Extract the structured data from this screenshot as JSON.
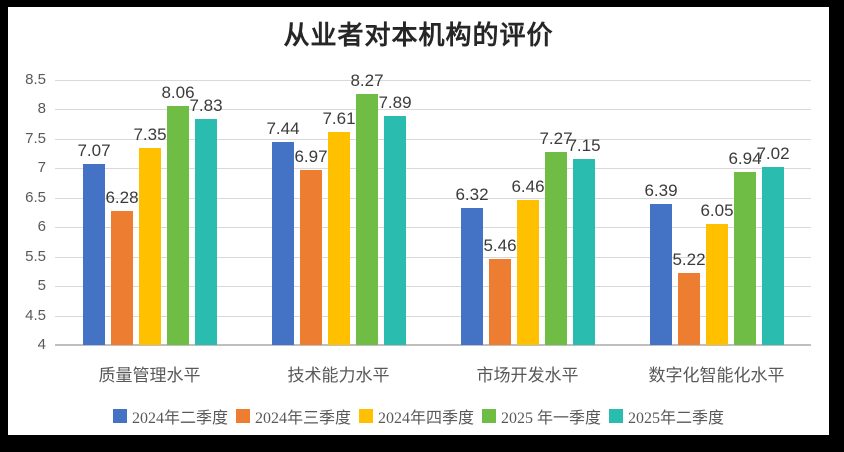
{
  "chart_data": {
    "type": "bar",
    "title": "从业者对本机构的评价",
    "categories": [
      "质量管理水平",
      "技术能力水平",
      "市场开发水平",
      "数字化智能化水平"
    ],
    "series": [
      {
        "name": "2024年二季度",
        "color": "#4472C4",
        "values": [
          7.07,
          7.44,
          6.32,
          6.39
        ]
      },
      {
        "name": "2024年三季度",
        "color": "#ED7D31",
        "values": [
          6.28,
          6.97,
          5.46,
          5.22
        ]
      },
      {
        "name": "2024年四季度",
        "color": "#FFC000",
        "values": [
          7.35,
          7.61,
          6.46,
          6.05
        ]
      },
      {
        "name": "2025 年一季度",
        "color": "#6FBD44",
        "values": [
          8.06,
          8.27,
          7.27,
          6.94
        ]
      },
      {
        "name": "2025年二季度",
        "color": "#2BBCB0",
        "values": [
          7.83,
          7.89,
          7.15,
          7.02
        ]
      }
    ],
    "ylim": [
      4,
      8.5
    ],
    "yticks": [
      {
        "value": 4,
        "label": "4"
      },
      {
        "value": 4.5,
        "label": "4.5"
      },
      {
        "value": 5,
        "label": "5"
      },
      {
        "value": 5.5,
        "label": "5.5"
      },
      {
        "value": 6,
        "label": "6"
      },
      {
        "value": 6.5,
        "label": "6.5"
      },
      {
        "value": 7,
        "label": "7"
      },
      {
        "value": 7.5,
        "label": "7.5"
      },
      {
        "value": 8,
        "label": "8"
      },
      {
        "value": 8.5,
        "label": "8.5"
      }
    ],
    "value_label_decimals": 2,
    "grid": true,
    "legend_position": "bottom",
    "accent_colors": {
      "axis": "#BFBFBF",
      "gridline": "#D9D9D9",
      "tick_text": "#595959",
      "title_text": "#262626"
    }
  }
}
